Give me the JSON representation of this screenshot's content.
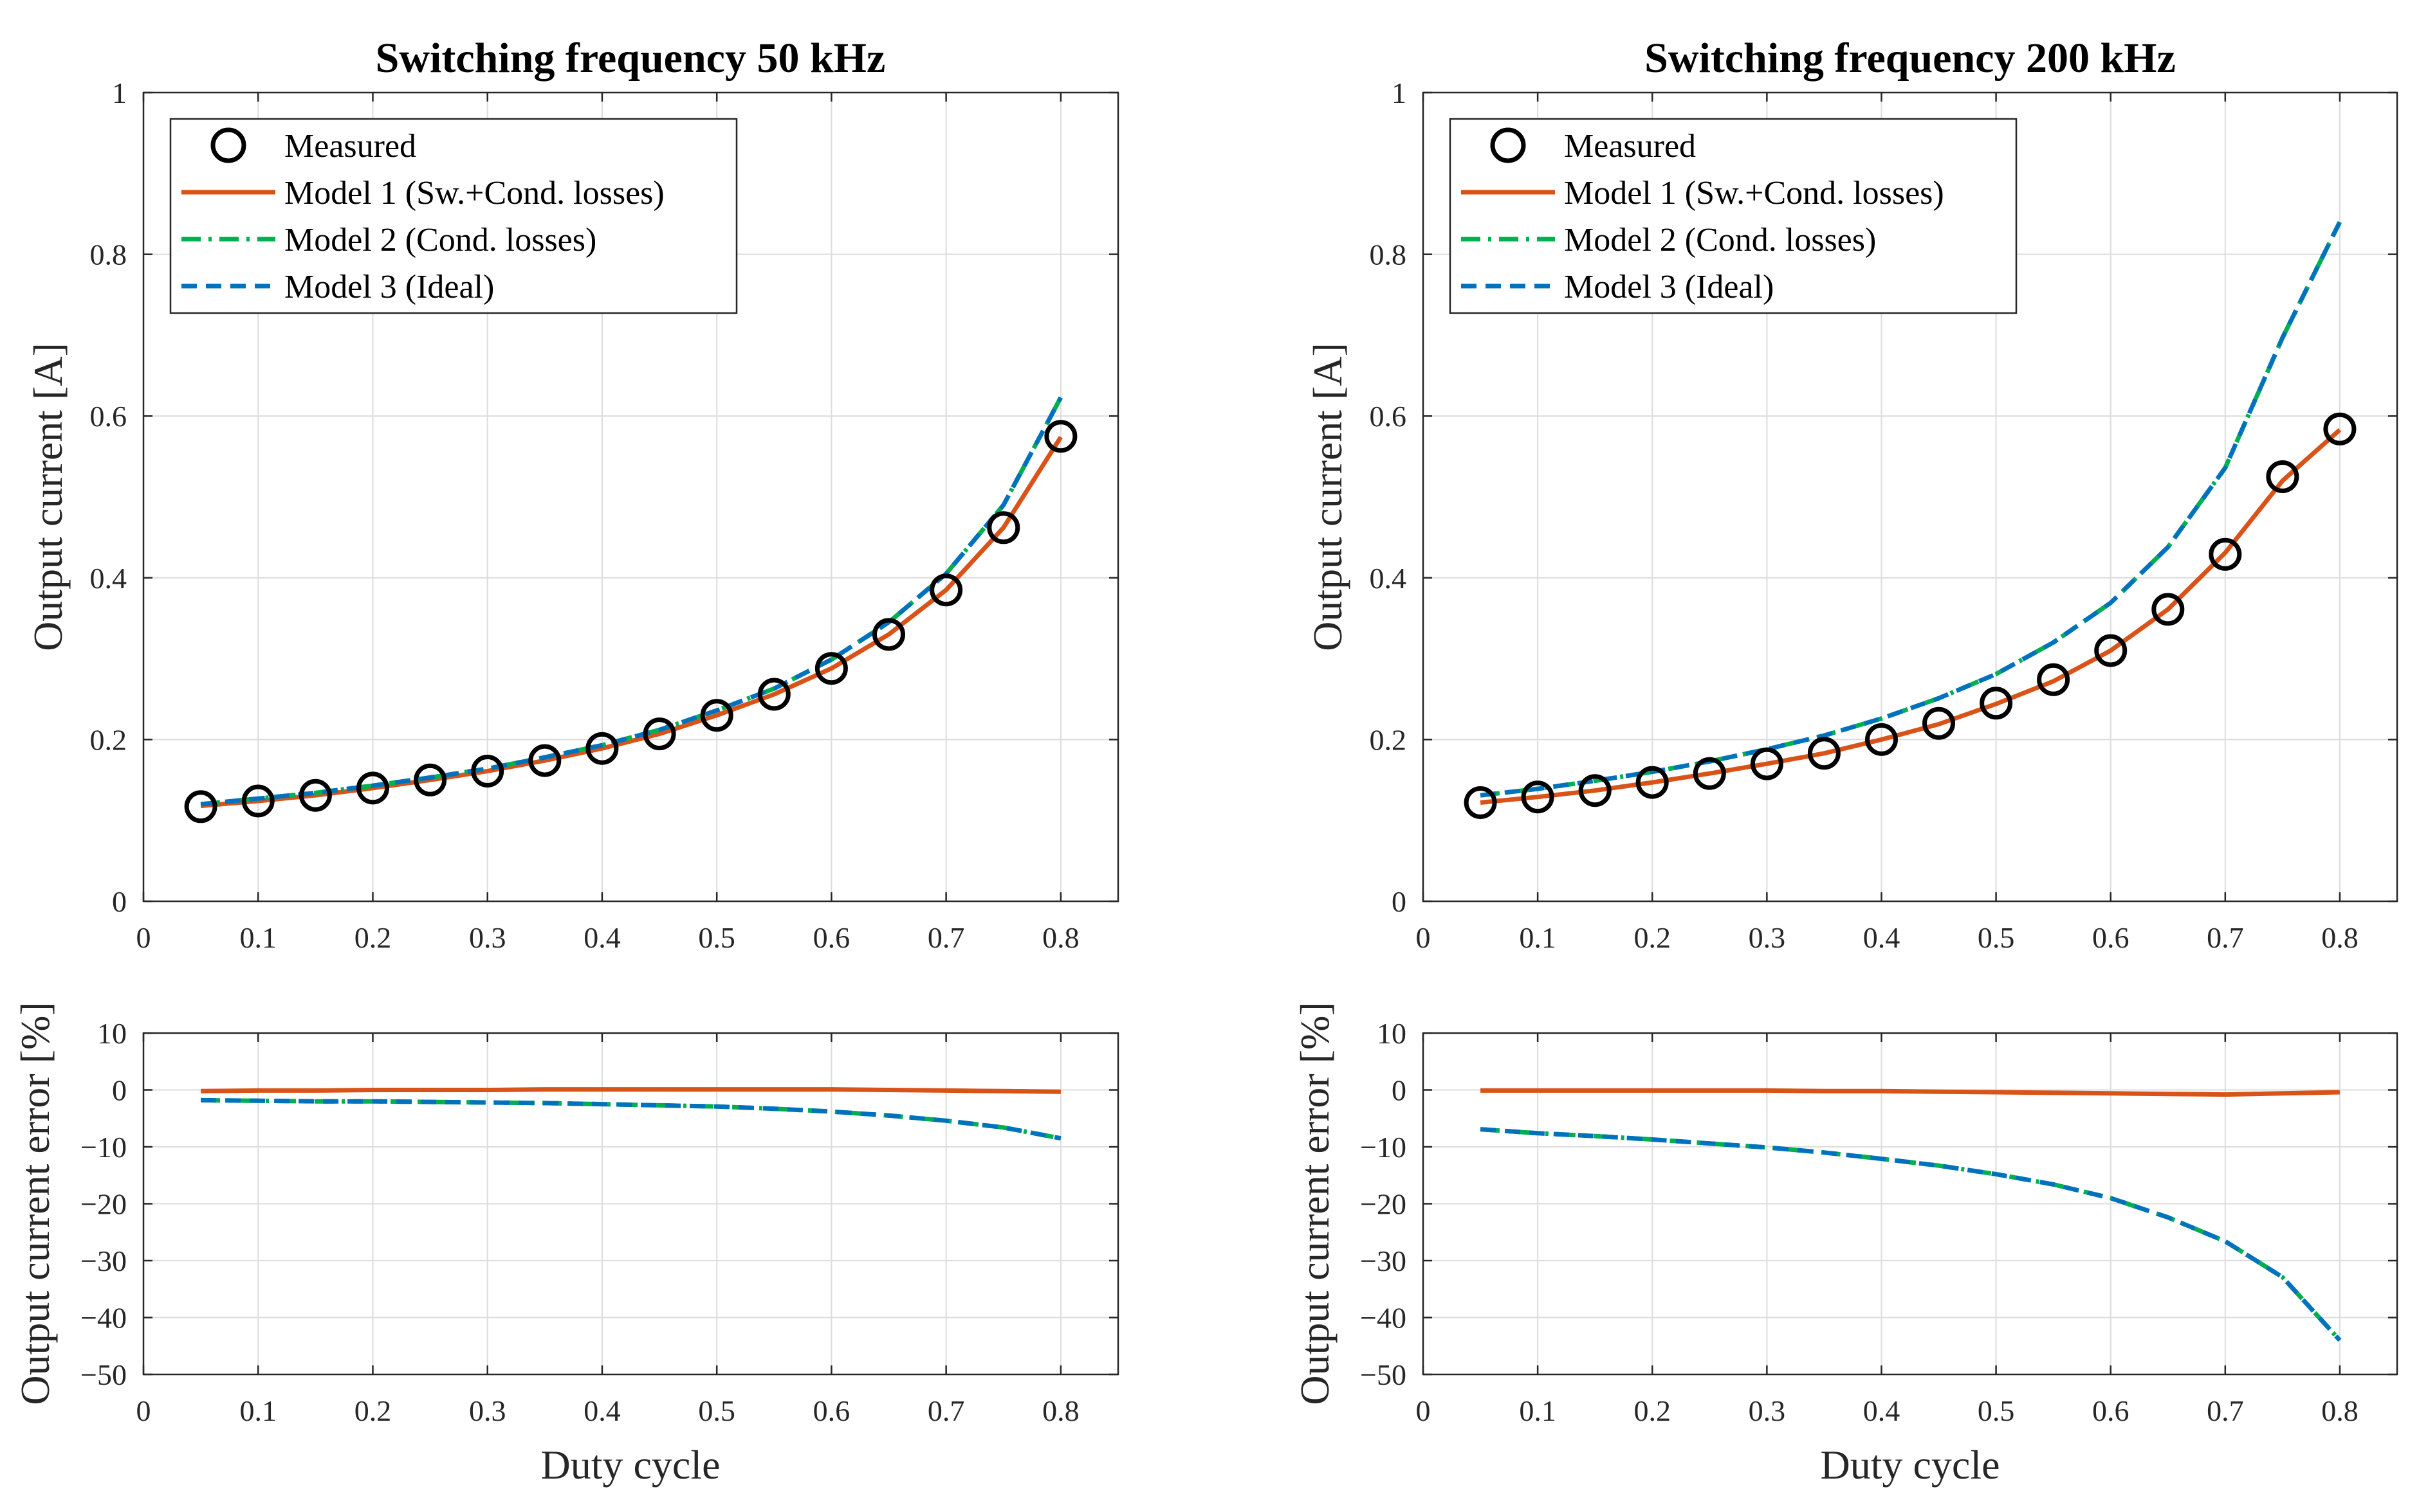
{
  "chart_data": [
    {
      "type": "line",
      "id": "top-left",
      "title": "Switching frequency 50 kHz",
      "xlabel": "",
      "ylabel": "Output current [A]",
      "xlim": [
        0,
        0.85
      ],
      "ylim": [
        0,
        1
      ],
      "xticks": [
        "0",
        "0.1",
        "0.2",
        "0.3",
        "0.4",
        "0.5",
        "0.6",
        "0.7",
        "0.8"
      ],
      "yticks": [
        "0",
        "0.2",
        "0.4",
        "0.6",
        "0.8",
        "1"
      ],
      "legend": "top-left",
      "x": [
        0.05,
        0.1,
        0.15,
        0.2,
        0.25,
        0.3,
        0.35,
        0.4,
        0.45,
        0.5,
        0.55,
        0.6,
        0.65,
        0.7,
        0.75,
        0.8
      ],
      "series": [
        {
          "name": "Measured",
          "style": "marker",
          "color": "#000000",
          "values": [
            0.117,
            0.124,
            0.131,
            0.14,
            0.15,
            0.161,
            0.174,
            0.189,
            0.207,
            0.23,
            0.256,
            0.288,
            0.33,
            0.385,
            0.462,
            0.575
          ]
        },
        {
          "name": "Model 1 (Sw.+Cond. losses)",
          "style": "solid",
          "color": "#D95319",
          "values": [
            0.118,
            0.124,
            0.131,
            0.14,
            0.15,
            0.161,
            0.174,
            0.189,
            0.207,
            0.23,
            0.256,
            0.288,
            0.33,
            0.385,
            0.462,
            0.574
          ]
        },
        {
          "name": "Model 2 (Cond. losses)",
          "style": "dashdot",
          "color": "#00B050",
          "values": [
            0.12,
            0.127,
            0.134,
            0.143,
            0.153,
            0.164,
            0.178,
            0.193,
            0.212,
            0.236,
            0.263,
            0.299,
            0.345,
            0.405,
            0.49,
            0.623
          ]
        },
        {
          "name": "Model 3 (Ideal)",
          "style": "dashed",
          "color": "#0072BD",
          "values": [
            0.12,
            0.127,
            0.134,
            0.143,
            0.153,
            0.164,
            0.178,
            0.193,
            0.212,
            0.236,
            0.263,
            0.299,
            0.345,
            0.405,
            0.49,
            0.623
          ]
        }
      ]
    },
    {
      "type": "line",
      "id": "top-right",
      "title": "Switching frequency 200 kHz",
      "xlabel": "",
      "ylabel": "Output current [A]",
      "xlim": [
        0,
        0.85
      ],
      "ylim": [
        0,
        1
      ],
      "xticks": [
        "0",
        "0.1",
        "0.2",
        "0.3",
        "0.4",
        "0.5",
        "0.6",
        "0.7",
        "0.8"
      ],
      "yticks": [
        "0",
        "0.2",
        "0.4",
        "0.6",
        "0.8",
        "1"
      ],
      "legend": "top-left",
      "x": [
        0.05,
        0.1,
        0.15,
        0.2,
        0.25,
        0.3,
        0.35,
        0.4,
        0.45,
        0.5,
        0.55,
        0.6,
        0.65,
        0.7,
        0.75,
        0.8
      ],
      "series": [
        {
          "name": "Measured",
          "style": "marker",
          "color": "#000000",
          "values": [
            0.122,
            0.129,
            0.137,
            0.147,
            0.158,
            0.17,
            0.183,
            0.2,
            0.22,
            0.245,
            0.274,
            0.31,
            0.361,
            0.429,
            0.525,
            0.584
          ]
        },
        {
          "name": "Model 1 (Sw.+Cond. losses)",
          "style": "solid",
          "color": "#D95319",
          "values": [
            0.122,
            0.129,
            0.137,
            0.147,
            0.158,
            0.17,
            0.183,
            0.2,
            0.219,
            0.244,
            0.272,
            0.31,
            0.361,
            0.431,
            0.52,
            0.583
          ]
        },
        {
          "name": "Model 2 (Cond. losses)",
          "style": "dashdot",
          "color": "#00B050",
          "values": [
            0.131,
            0.139,
            0.149,
            0.16,
            0.173,
            0.188,
            0.205,
            0.226,
            0.251,
            0.281,
            0.32,
            0.369,
            0.438,
            0.536,
            0.697,
            0.84
          ]
        },
        {
          "name": "Model 3 (Ideal)",
          "style": "dashed",
          "color": "#0072BD",
          "values": [
            0.131,
            0.139,
            0.149,
            0.16,
            0.173,
            0.188,
            0.205,
            0.226,
            0.251,
            0.281,
            0.32,
            0.369,
            0.438,
            0.536,
            0.697,
            0.84
          ]
        }
      ]
    },
    {
      "type": "line",
      "id": "bottom-left",
      "title": "",
      "xlabel": "Duty cycle",
      "ylabel": "Output current error [%]",
      "xlim": [
        0,
        0.85
      ],
      "ylim": [
        -50,
        10
      ],
      "xticks": [
        "0",
        "0.1",
        "0.2",
        "0.3",
        "0.4",
        "0.5",
        "0.6",
        "0.7",
        "0.8"
      ],
      "yticks": [
        "−50",
        "−40",
        "−30",
        "−20",
        "−10",
        "0",
        "10"
      ],
      "x": [
        0.05,
        0.1,
        0.15,
        0.2,
        0.25,
        0.3,
        0.35,
        0.4,
        0.45,
        0.5,
        0.55,
        0.6,
        0.65,
        0.7,
        0.75,
        0.8
      ],
      "series": [
        {
          "name": "Model 1 (Sw.+Cond. losses)",
          "style": "solid",
          "color": "#D95319",
          "values": [
            -0.2,
            -0.1,
            -0.1,
            0.0,
            0.0,
            0.0,
            0.1,
            0.1,
            0.1,
            0.1,
            0.1,
            0.1,
            0.0,
            -0.1,
            -0.2,
            -0.3
          ]
        },
        {
          "name": "Model 2 (Cond. losses)",
          "style": "dashdot",
          "color": "#00B050",
          "values": [
            -1.8,
            -1.9,
            -2.0,
            -2.0,
            -2.1,
            -2.2,
            -2.3,
            -2.5,
            -2.7,
            -2.9,
            -3.3,
            -3.8,
            -4.5,
            -5.4,
            -6.6,
            -8.5
          ]
        },
        {
          "name": "Model 3 (Ideal)",
          "style": "dashed",
          "color": "#0072BD",
          "values": [
            -1.8,
            -1.9,
            -2.0,
            -2.0,
            -2.1,
            -2.2,
            -2.3,
            -2.5,
            -2.7,
            -2.9,
            -3.3,
            -3.8,
            -4.5,
            -5.4,
            -6.6,
            -8.5
          ]
        }
      ]
    },
    {
      "type": "line",
      "id": "bottom-right",
      "title": "",
      "xlabel": "Duty cycle",
      "ylabel": "Output current error [%]",
      "xlim": [
        0,
        0.85
      ],
      "ylim": [
        -50,
        10
      ],
      "xticks": [
        "0",
        "0.1",
        "0.2",
        "0.3",
        "0.4",
        "0.5",
        "0.6",
        "0.7",
        "0.8"
      ],
      "yticks": [
        "−50",
        "−40",
        "−30",
        "−20",
        "−10",
        "0",
        "10"
      ],
      "x": [
        0.05,
        0.1,
        0.15,
        0.2,
        0.25,
        0.3,
        0.35,
        0.4,
        0.45,
        0.5,
        0.55,
        0.6,
        0.65,
        0.7,
        0.75,
        0.8
      ],
      "series": [
        {
          "name": "Model 1 (Sw.+Cond. losses)",
          "style": "solid",
          "color": "#D95319",
          "values": [
            -0.1,
            -0.1,
            -0.1,
            -0.1,
            -0.1,
            -0.1,
            -0.2,
            -0.2,
            -0.3,
            -0.4,
            -0.5,
            -0.6,
            -0.7,
            -0.8,
            -0.6,
            -0.4
          ]
        },
        {
          "name": "Model 2 (Cond. losses)",
          "style": "dashdot",
          "color": "#00B050",
          "values": [
            -6.9,
            -7.6,
            -8.1,
            -8.7,
            -9.4,
            -10.1,
            -11.0,
            -12.1,
            -13.3,
            -14.8,
            -16.6,
            -19.0,
            -22.4,
            -26.6,
            -32.9,
            -44.0
          ]
        },
        {
          "name": "Model 3 (Ideal)",
          "style": "dashed",
          "color": "#0072BD",
          "values": [
            -6.9,
            -7.6,
            -8.1,
            -8.7,
            -9.4,
            -10.1,
            -11.0,
            -12.1,
            -13.3,
            -14.8,
            -16.6,
            -19.0,
            -22.4,
            -26.6,
            -32.9,
            -44.0
          ]
        }
      ]
    }
  ]
}
